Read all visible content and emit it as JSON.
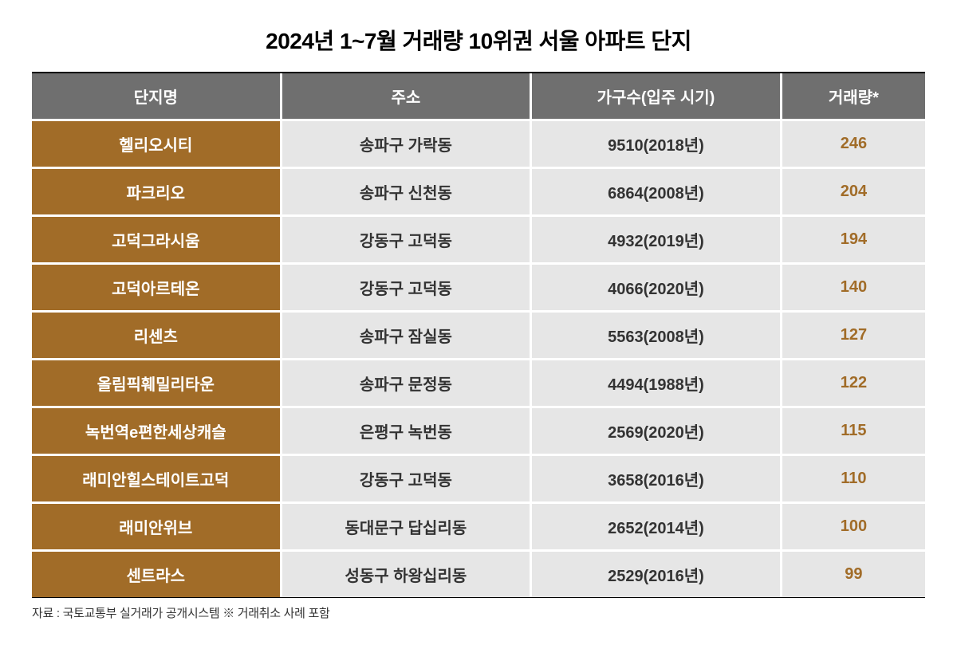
{
  "title": "2024년 1~7월 거래량 10위권 서울 아파트 단지",
  "columns": {
    "name": "단지명",
    "address": "주소",
    "households": "가구수(입주 시기)",
    "volume": "거래량*"
  },
  "column_widths": [
    "28%",
    "28%",
    "28%",
    "16%"
  ],
  "header_bg": "#6f6f6f",
  "header_text_color": "#ffffff",
  "name_col_bg": "#a16c28",
  "name_col_text_color": "#ffffff",
  "data_cell_bg": "#e6e6e6",
  "data_text_color": "#333333",
  "volume_text_color": "#a16c28",
  "border_color": "#ffffff",
  "outer_border_color": "#000000",
  "background_color": "#ffffff",
  "title_fontsize": 28,
  "header_fontsize": 20,
  "cell_fontsize": 20,
  "footnote_fontsize": 15,
  "rows": [
    {
      "name": "헬리오시티",
      "address": "송파구 가락동",
      "households": "9510(2018년)",
      "volume": "246"
    },
    {
      "name": "파크리오",
      "address": "송파구 신천동",
      "households": "6864(2008년)",
      "volume": "204"
    },
    {
      "name": "고덕그라시움",
      "address": "강동구 고덕동",
      "households": "4932(2019년)",
      "volume": "194"
    },
    {
      "name": "고덕아르테온",
      "address": "강동구 고덕동",
      "households": "4066(2020년)",
      "volume": "140"
    },
    {
      "name": "리센츠",
      "address": "송파구 잠실동",
      "households": "5563(2008년)",
      "volume": "127"
    },
    {
      "name": "올림픽훼밀리타운",
      "address": "송파구 문정동",
      "households": "4494(1988년)",
      "volume": "122"
    },
    {
      "name": "녹번역e편한세상캐슬",
      "address": "은평구 녹번동",
      "households": "2569(2020년)",
      "volume": "115"
    },
    {
      "name": "래미안힐스테이트고덕",
      "address": "강동구 고덕동",
      "households": "3658(2016년)",
      "volume": "110"
    },
    {
      "name": "래미안위브",
      "address": "동대문구 답십리동",
      "households": "2652(2014년)",
      "volume": "100"
    },
    {
      "name": "센트라스",
      "address": "성동구 하왕십리동",
      "households": "2529(2016년)",
      "volume": "99"
    }
  ],
  "footnote": "자료 : 국토교통부 실거래가 공개시스템 ※ 거래취소 사례 포함"
}
